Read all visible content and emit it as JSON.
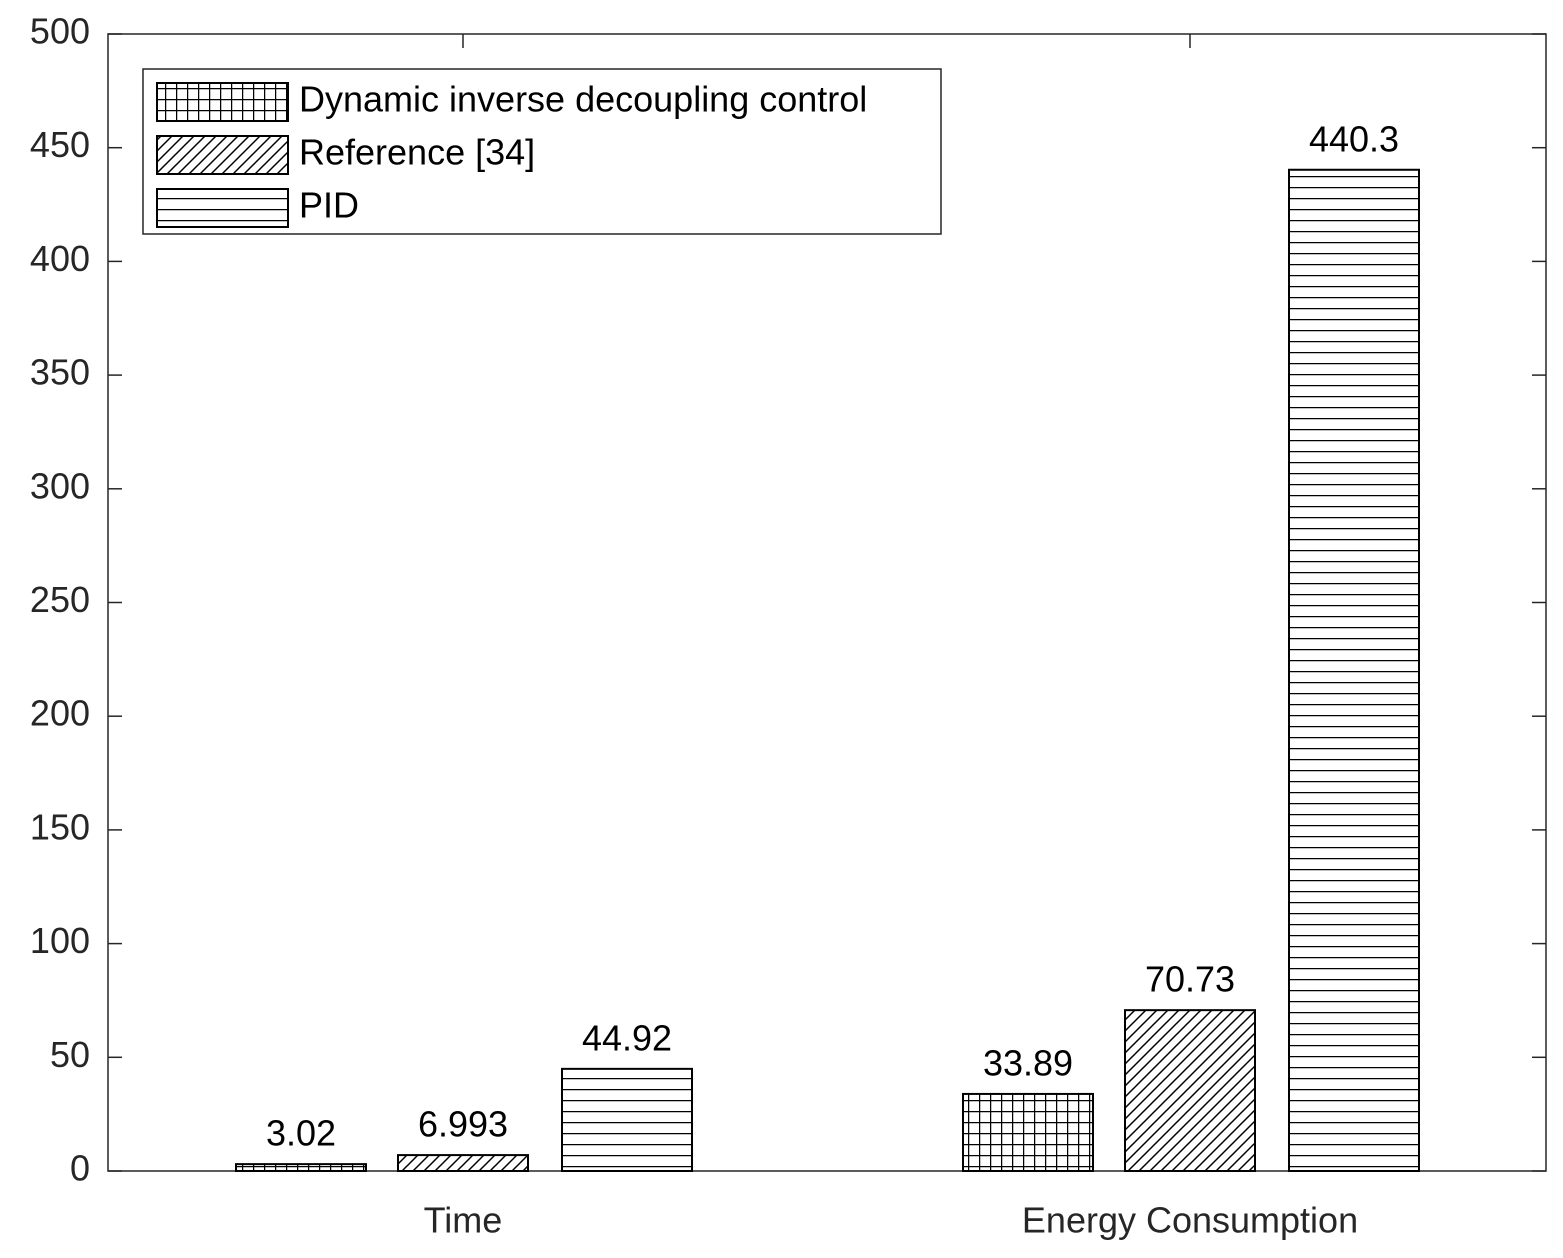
{
  "chart_data": {
    "type": "bar",
    "categories": [
      "Time",
      "Energy Consumption"
    ],
    "series": [
      {
        "name": "Dynamic inverse decoupling control",
        "color": "#000000",
        "pattern": "grid",
        "values": [
          3.02,
          33.89
        ]
      },
      {
        "name": "Reference [34]",
        "color": "#000000",
        "pattern": "diagonal",
        "values": [
          6.993,
          70.73
        ]
      },
      {
        "name": "PID",
        "color": "#000000",
        "pattern": "horizontal",
        "values": [
          44.92,
          440.3
        ]
      }
    ],
    "ylim": [
      0,
      500
    ],
    "yticks": [
      0,
      50,
      100,
      150,
      200,
      250,
      300,
      350,
      400,
      450,
      500
    ],
    "grid": false,
    "legend": "upper left"
  }
}
